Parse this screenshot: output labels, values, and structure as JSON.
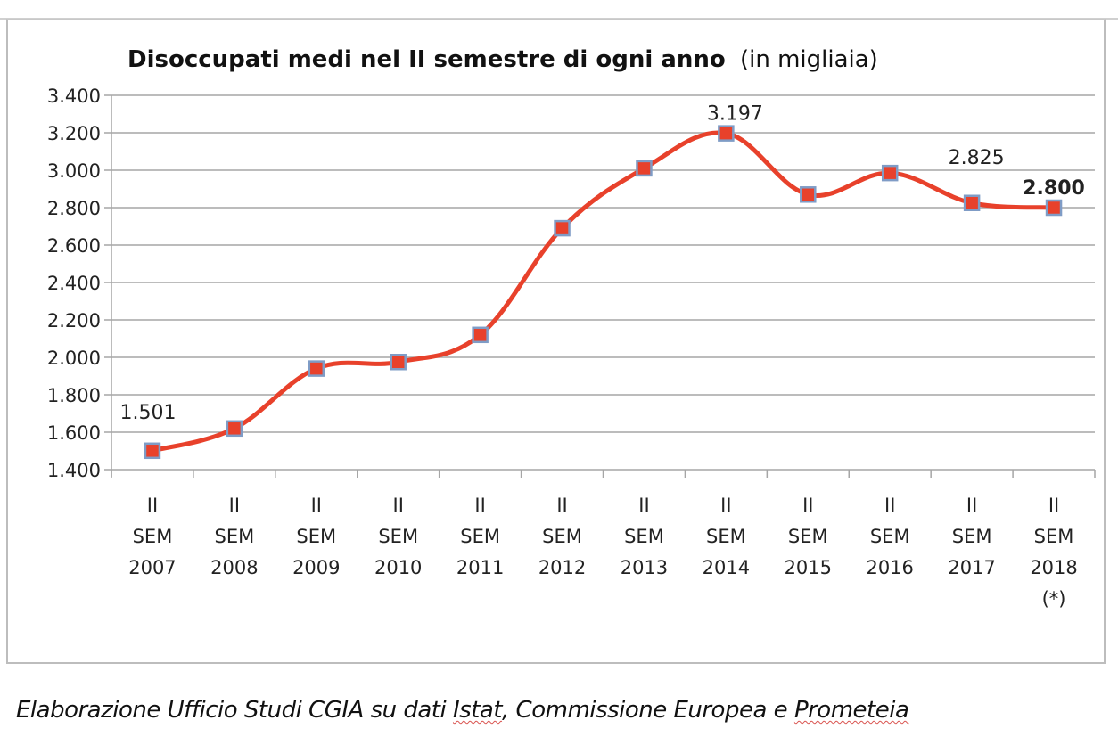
{
  "chart_data": {
    "type": "line",
    "title": "Disoccupati medi nel II semestre di ogni anno",
    "title_suffix": "(in migliaia)",
    "xlabel": "",
    "ylabel": "",
    "ylim": [
      1400,
      3400
    ],
    "yticks": [
      1400,
      1600,
      1800,
      2000,
      2200,
      2400,
      2600,
      2800,
      3000,
      3200,
      3400
    ],
    "ytick_labels": [
      "1.400",
      "1.600",
      "1.800",
      "2.000",
      "2.200",
      "2.400",
      "2.600",
      "2.800",
      "3.000",
      "3.200",
      "3.400"
    ],
    "grid": true,
    "smooth": true,
    "categories": [
      [
        "II",
        "SEM",
        "2007"
      ],
      [
        "II",
        "SEM",
        "2008"
      ],
      [
        "II",
        "SEM",
        "2009"
      ],
      [
        "II",
        "SEM",
        "2010"
      ],
      [
        "II",
        "SEM",
        "2011"
      ],
      [
        "II",
        "SEM",
        "2012"
      ],
      [
        "II",
        "SEM",
        "2013"
      ],
      [
        "II",
        "SEM",
        "2014"
      ],
      [
        "II",
        "SEM",
        "2015"
      ],
      [
        "II",
        "SEM",
        "2016"
      ],
      [
        "II",
        "SEM",
        "2017"
      ],
      [
        "II",
        "SEM",
        "2018",
        "(*)"
      ]
    ],
    "series": [
      {
        "name": "Disoccupati medi",
        "color": "#e8412b",
        "marker_fill": "#e8412b",
        "marker_stroke": "#7f9cc6",
        "values": [
          1501,
          1620,
          1940,
          1975,
          2120,
          2690,
          3010,
          3197,
          2870,
          2985,
          2825,
          2800
        ]
      }
    ],
    "data_labels": [
      {
        "index": 0,
        "text": "1.501",
        "bold": false
      },
      {
        "index": 7,
        "text": "3.197",
        "bold": false
      },
      {
        "index": 10,
        "text": "2.825",
        "bold": false
      },
      {
        "index": 11,
        "text": "2.800",
        "bold": true
      }
    ],
    "legend": "none"
  },
  "source": {
    "prefix": "Elaborazione Ufficio Studi CGIA su dati ",
    "istat": "Istat",
    "middle": ", Commissione Europea e ",
    "prometeia": "Prometeia"
  },
  "colors": {
    "gridline": "#a6a6a6",
    "frame": "#bdbdbd",
    "line": "#e8412b",
    "marker_border": "#7f9cc6"
  }
}
